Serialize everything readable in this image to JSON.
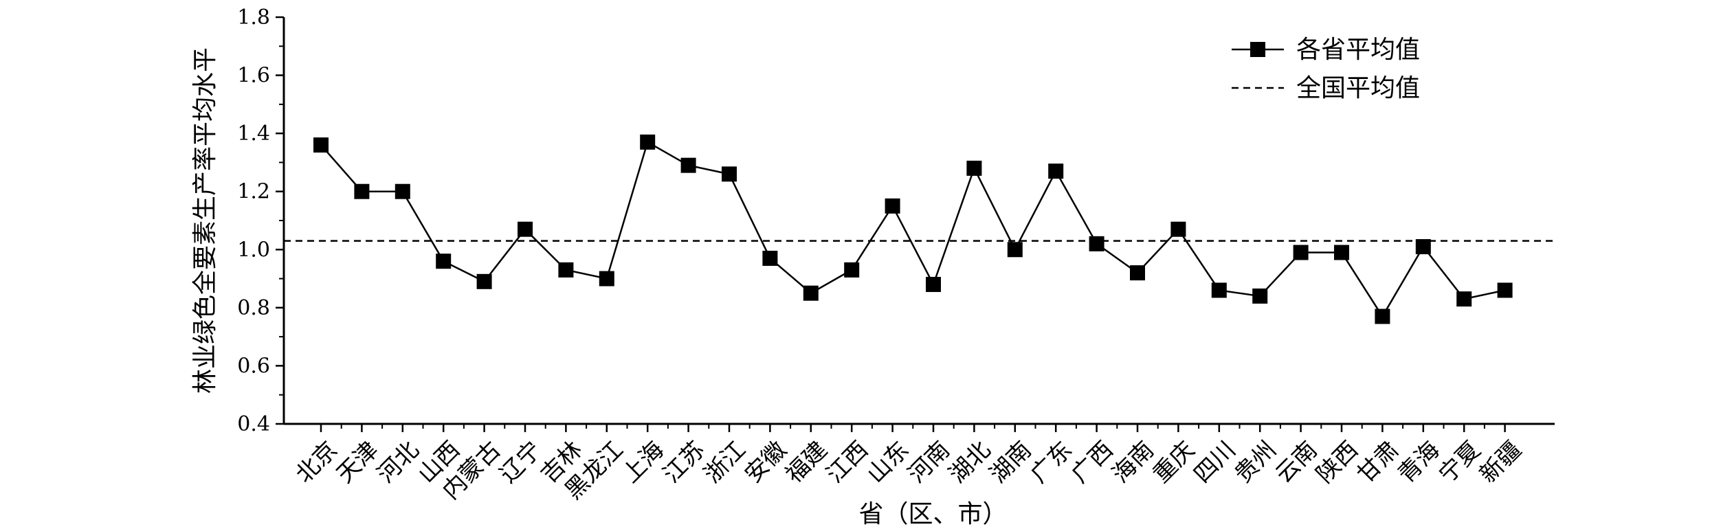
{
  "chart_data": {
    "type": "line",
    "title": "",
    "xlabel": "省（区、市）",
    "ylabel": "林业绿色全要素生产率平均水平",
    "ylim": [
      0.4,
      1.8
    ],
    "yticks": [
      "0.4",
      "0.6",
      "0.8",
      "1.0",
      "1.2",
      "1.4",
      "1.6",
      "1.8"
    ],
    "categories": [
      "北京",
      "天津",
      "河北",
      "山西",
      "内蒙古",
      "辽宁",
      "吉林",
      "黑龙江",
      "上海",
      "江苏",
      "浙江",
      "安徽",
      "福建",
      "江西",
      "山东",
      "河南",
      "湖北",
      "湖南",
      "广东",
      "广西",
      "海南",
      "重庆",
      "四川",
      "贵州",
      "云南",
      "陕西",
      "甘肃",
      "青海",
      "宁夏",
      "新疆"
    ],
    "series": [
      {
        "name": "各省平均值",
        "style": "line-with-square-markers",
        "color": "#000000",
        "values": [
          1.36,
          1.2,
          1.2,
          0.96,
          0.89,
          1.07,
          0.93,
          0.9,
          1.37,
          1.29,
          1.26,
          0.97,
          0.85,
          0.93,
          1.15,
          0.88,
          1.28,
          1.0,
          1.27,
          1.02,
          0.92,
          1.07,
          0.86,
          0.84,
          0.99,
          0.99,
          0.77,
          1.01,
          0.83,
          0.86
        ]
      }
    ],
    "reference_line": {
      "name": "全国平均值",
      "value": 1.03,
      "style": "dashed",
      "color": "#000000"
    },
    "legend": {
      "placement": "top-right",
      "entries": [
        "各省平均值",
        "全国平均值"
      ]
    },
    "grid": false
  }
}
